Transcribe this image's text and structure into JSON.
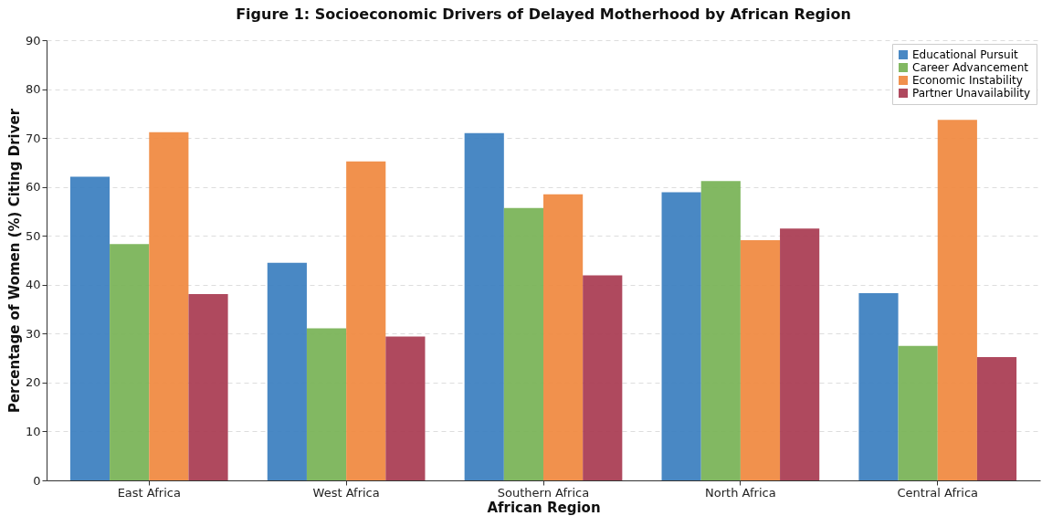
{
  "chart_data": {
    "type": "bar",
    "title": "Figure 1: Socioeconomic Drivers of Delayed Motherhood by African Region",
    "xlabel": "African Region",
    "ylabel": "Percentage of Women (%) Citing Driver",
    "categories": [
      "East Africa",
      "West Africa",
      "Southern Africa",
      "North Africa",
      "Central Africa"
    ],
    "series": [
      {
        "name": "Educational Pursuit",
        "color": "#3a7ebf",
        "values": [
          62.1,
          44.5,
          71.0,
          58.9,
          38.3
        ]
      },
      {
        "name": "Career Advancement",
        "color": "#77b255",
        "values": [
          48.3,
          31.1,
          55.7,
          61.2,
          27.5
        ]
      },
      {
        "name": "Economic Instability",
        "color": "#f0883e",
        "values": [
          71.2,
          65.2,
          58.5,
          49.1,
          73.7
        ]
      },
      {
        "name": "Partner Unavailability",
        "color": "#a83a50",
        "values": [
          38.1,
          29.4,
          41.9,
          51.5,
          25.2
        ]
      }
    ],
    "ylim": [
      0,
      90
    ],
    "yticks": [
      0,
      10,
      20,
      30,
      40,
      50,
      60,
      70,
      80,
      90
    ],
    "grid": "y",
    "legend": "top right"
  }
}
